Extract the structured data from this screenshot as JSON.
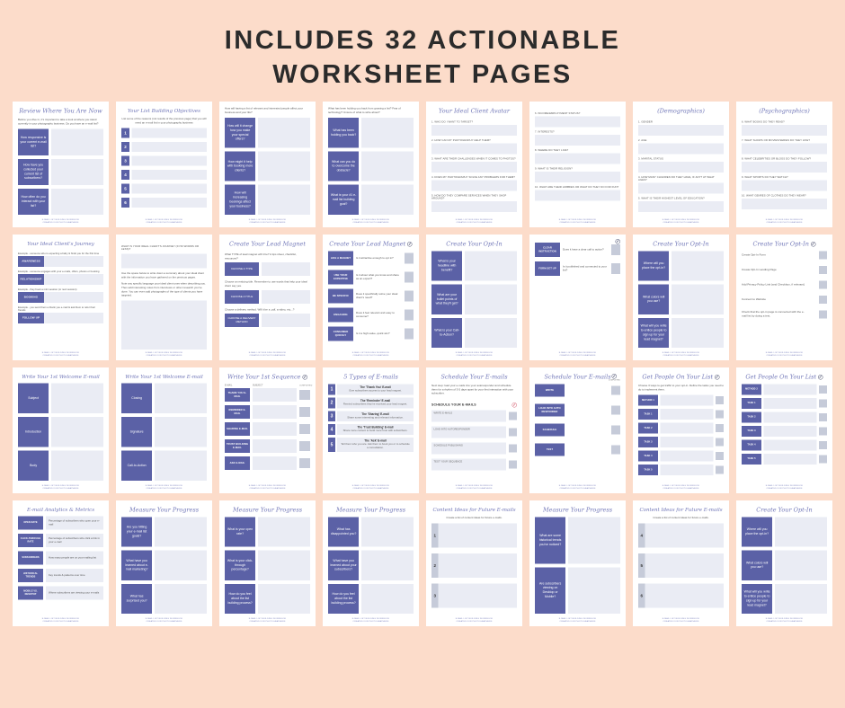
{
  "header": {
    "title": "INCLUDES 32 ACTIONABLE WORKSHEET PAGES"
  },
  "colors": {
    "background": "#fcdcca",
    "heading": "#2b2b2b",
    "purple": "#5b61a6",
    "title_purple": "#7177b8",
    "field": "#eaecf4",
    "checkbox": "#c6cbd9",
    "check_dark": "#3c4163",
    "check_pink": "#d4576b"
  },
  "icons": {
    "check": "✓"
  },
  "footer_lines": [
    "E-mail List Building Workbook",
    "Created for Photographers"
  ],
  "pages": [
    {
      "layout": "side-rows",
      "title": "Review Where You Are Now",
      "intro": "Before you dive in, it's important to take a look at where you stand currently in your photography business. Do you have an e-mail list?",
      "rows": [
        "How responsive is your current e-mail list?",
        "How have you collected your current list of subscribers?",
        "How often do you interact with your list?"
      ]
    },
    {
      "layout": "numbered-rows",
      "title": "Your List Building Objectives",
      "intro": "List some of the reasons (not results of the previous page) that you will need an e-mail list in your photography business",
      "items": [
        "1",
        "2",
        "3",
        "4",
        "5",
        "6"
      ]
    },
    {
      "layout": "side-rows",
      "intro": "How will having a list of relevant and interested people affect your business and your life?",
      "rows": [
        "How will it change how you make your special offers?",
        "How might it help with booking more clients?",
        "How will increasing bookings affect your business?"
      ]
    },
    {
      "layout": "side-rows",
      "intro": "What has been holding you back from growing a list? Fear of technology? Unsure of what to write about?",
      "rows": [
        "What has been holding you back?",
        "What can you do to overcome the obstacle?",
        "What is your #1 e-mail list building goal?"
      ]
    },
    {
      "layout": "form",
      "title": "Your Ideal Client Avatar",
      "questions": [
        "1. WHO DO I WANT TO TARGET?",
        "2. HOW CAN MY PHOTOGRAPHY HELP THEM?",
        "3. WHAT ARE THEIR CHALLENGES WHEN IT COMES TO PHOTOS?",
        "4. DOES MY PHOTOGRAPHY SOLVE ANY PROBLEMS FOR THEM?",
        "5. HOW DO THEY COMPARE SERVICES WHEN THEY SHOP AROUND?"
      ]
    },
    {
      "layout": "form",
      "questions": [
        "6. INCOME/EMPLOYMENT STATUS?",
        "7. INTERESTS?",
        "8. WHERE DO THEY LIVE?",
        "9. WHAT IS THEIR RELIGION?",
        "10. WHAT ARE THEIR HOBBIES OR WHAT DO THEY DO FOR FUN?"
      ]
    },
    {
      "layout": "form",
      "title": "(Demographics)",
      "questions": [
        "1. GENDER",
        "2. AGE",
        "3. MARITAL STATUS",
        "4. HOW MANY CHILDREN DO THEY HAVE, IF ANY? AT WHAT AGES?",
        "5. WHAT IS THEIR HIGHEST LEVEL OF EDUCATION?"
      ]
    },
    {
      "layout": "form",
      "title": "(Psychographics)",
      "questions": [
        "6. WHAT BOOKS DO THEY READ?",
        "7. WHAT SHOWS OR MOVIES/SERIES DO THEY LIKE?",
        "8. WHAT CELEBRITIES OR BLOGS DO THEY FOLLOW?",
        "9. WHAT SPORTS DO THEY WATCH?",
        "10. WHAT GENRES OF CLOTHES DO THEY WEAR?"
      ]
    },
    {
      "layout": "journey",
      "title": "Your Ideal Client's Journey",
      "steps": [
        {
          "caption": "Example - someone who is expecting a baby & finds you for the first time",
          "label": "AWARENESS"
        },
        {
          "caption": "Example - someone engages with your e-mails, offers, photos or booking",
          "label": "RELATIONSHIP"
        },
        {
          "caption": "Example - they book a mini session (or next session)",
          "label": "BOOKING"
        },
        {
          "caption": "Example - you send them a thank you e-mail & ask them to refer their friends",
          "label": "FOLLOW UP"
        }
      ]
    },
    {
      "layout": "text",
      "caps": "WHAT IS YOUR IDEAL CLIENT'S JOURNEY (IN 50 WORDS OR LESS)?",
      "paras": [
        "Use the space below to write down a summary about your ideal client with the information you have gathered on the previous pages.",
        "Note any specific language your ideal client uses when describing you. Then add interesting notes from interviews or other research you've done. You can even add photographs of the type of clients you have targeted."
      ]
    },
    {
      "layout": "steps",
      "title": "Create Your Lead Magnet",
      "steps": [
        {
          "text": "What TYPE of lead magnet will it be? A tips sheet, checklist, resources?",
          "label": "CHOOSE A TYPE"
        },
        {
          "text": "Choose an enticing title. Remember to use words that help your ideal client say yes.",
          "label": "CHOOSE A TITLE"
        },
        {
          "text": "Choose a delivery method. Will it be a .pdf, a video, etc...?",
          "label": "CHOOSE A DELIVERY METHOD"
        }
      ]
    },
    {
      "layout": "check-label-rows",
      "title": "Create Your Lead Magnet",
      "checkmark": true,
      "rows": [
        {
          "label": "LIKE A MAGNET",
          "text": "Is it attractive enough to opt in?"
        },
        {
          "label": "USE YOUR EXPERTISE",
          "text": "Is it about what you know and share as an expert?"
        },
        {
          "label": "BE SPECIFIC",
          "text": "Does it specifically solve your ideal client's need?"
        },
        {
          "label": "ENGAGING",
          "text": "Does it feel relevant and easy to consume?"
        },
        {
          "label": "CONSUMED QUICKLY",
          "text": "Is it a high-value, quick win?"
        }
      ]
    },
    {
      "layout": "side-rows",
      "title": "Create Your Opt-In",
      "rows": [
        "What is your headline with benefit?",
        "What are your bullet points of what they'll get?",
        "What is your Call-to-Action?"
      ]
    },
    {
      "layout": "check-label-rows",
      "checkmark": true,
      "rows": [
        {
          "label": "CLEAR INSTRUCTION",
          "text": "Does it have a clear call to action?"
        },
        {
          "label": "FORM SET UP",
          "text": "Is it published and connected to your list?"
        }
      ]
    },
    {
      "layout": "side-rows",
      "title": "Create Your Opt-In",
      "rows": [
        "Where will you place the opt-in?",
        "What colors will you use?",
        "What will you write to entice people to sign up for your lead magnet?"
      ]
    },
    {
      "layout": "check-text-rows",
      "title": "Create Your Opt-In",
      "checkmark": true,
      "rows": [
        "Create Opt-In Form",
        "Create Opt-In Landing Page",
        "Add Privacy Policy Link (and Checkbox, if relevant)",
        "Connect to Website",
        "Check that the opt-in page is connected with the e-mail list by doing a test."
      ]
    },
    {
      "layout": "side-rows",
      "title": "Write Your 1st Welcome E-mail",
      "rows": [
        "Subject",
        "Introduction",
        "Body"
      ]
    },
    {
      "layout": "side-rows",
      "title": "Write Your 1st Welcome E-mail",
      "rows": [
        "Closing",
        "Signature",
        "Call-to-Action"
      ]
    },
    {
      "layout": "sequence",
      "title": "Write Your 1st Sequence",
      "checkmark": true,
      "headers": [
        "E-MAIL",
        "SUBJECT",
        "COMPLETED"
      ],
      "rows": [
        "THANK YOU E-MAIL",
        "REMINDER E-MAIL",
        "SHARING E-MAIL",
        "TRUST BUILDING E-MAIL",
        "ASK E-MAIL"
      ]
    },
    {
      "layout": "types",
      "title": "5 Types of E-mails",
      "items": [
        {
          "num": "1",
          "name": "The 'Thank You' E-mail",
          "desc": "Give subscribers access to your lead magnet."
        },
        {
          "num": "2",
          "name": "The 'Reminder' E-mail",
          "desc": "Remind subscribers they've received your lead magnet."
        },
        {
          "num": "3",
          "name": "The 'Sharing' E-mail",
          "desc": "Share some interesting and relevant information."
        },
        {
          "num": "4",
          "name": "The 'Trust Building' E-mail",
          "desc": "Share more content to build more trust with subscribers."
        },
        {
          "num": "5",
          "name": "The 'Ask' E-mail",
          "desc": "Tell them who you are. Ask them to book you or to schedule a consultation."
        }
      ]
    },
    {
      "layout": "schedule-plan",
      "title": "Schedule Your E-mails",
      "intro": "Next step: load your e-mails into your autoresponder and schedule them for a rhythm of 3-5 days apart for your first interaction with your subscriber.",
      "subhead": "SCHEDULE YOUR E-MAILS",
      "rows": [
        "WRITE E-MAILS",
        "LOAD INTO AUTORESPONDER",
        "SCHEDULE PUBLISHING",
        "TEST YOUR SEQUENCE"
      ]
    },
    {
      "layout": "sequence2",
      "title": "Schedule Your E-mails",
      "checkmark": true,
      "completed": "COMPLETED",
      "rows": [
        "WRITE",
        "LOAD INTO AUTO RESPONDER",
        "SCHEDULE",
        "TEST"
      ]
    },
    {
      "layout": "method",
      "title": "Get People On Your List",
      "checkmark": true,
      "intro": "Choose 3 ways to get traffic to your opt-in. Define the tasks you need to do to implement them.",
      "rows": [
        "METHOD 1",
        "TASK 1",
        "TASK 2",
        "TASK 3",
        "TASK 4",
        "TASK 5"
      ]
    },
    {
      "layout": "method",
      "title": "Get People On Your List",
      "checkmark": true,
      "rows": [
        "METHOD 2",
        "TASK 1",
        "TASK 2",
        "TASK 3",
        "TASK 4",
        "TASK 5"
      ]
    },
    {
      "layout": "metrics",
      "title": "E-mail Analytics & Metrics",
      "rows": [
        {
          "label": "OPEN RATE",
          "text": "Percentage of subscribers who open your e-mail"
        },
        {
          "label": "CLICK-THROUGH RATE",
          "text": "Percentage of subscribers who click a link in your e-mail"
        },
        {
          "label": "SUBSCRIBERS",
          "text": "How many people are on your mailing list"
        },
        {
          "label": "HISTORICAL TRENDS",
          "text": "Key trends & patterns over time"
        },
        {
          "label": "MOBILE VS. DESKTOP",
          "text": "Where subscribers are viewing your e-mails"
        }
      ]
    },
    {
      "layout": "side-rows",
      "title": "Measure Your Progress",
      "rows": [
        "Are you hitting your e-mail list goals?",
        "What have you learned about e-mail marketing?",
        "What has surprised you?"
      ]
    },
    {
      "layout": "side-rows",
      "title": "Measure Your Progress",
      "rows": [
        "What is your open rate?",
        "What is your click-through percentage?",
        "How do you feel about the list building process?"
      ]
    },
    {
      "layout": "side-rows",
      "title": "Measure Your Progress",
      "rows": [
        "What has disappointed you?",
        "What have you learned about your subscribers?",
        "How do you feel about the list building process?"
      ]
    },
    {
      "layout": "ideas",
      "title": "Content Ideas for Future E-mails",
      "intro": "Create a list of content ideas for future e-mails.",
      "items": [
        "1",
        "2",
        "3"
      ]
    },
    {
      "layout": "side-rows",
      "title": "Measure Your Progress",
      "rows": [
        "What are some historical trends you've noticed?",
        "Are subscribers viewing on Desktop or Mobile?"
      ]
    },
    {
      "layout": "ideas",
      "title": "Content Ideas for Future E-mails",
      "intro": "Create a list of content ideas for future e-mails.",
      "items": [
        "4",
        "5",
        "6"
      ]
    },
    {
      "layout": "side-rows",
      "title": "Create Your Opt-In",
      "rows": [
        "Where will you place the opt-in?",
        "What colors will you use?",
        "What will you write to entice people to sign up for your lead magnet?"
      ]
    }
  ]
}
